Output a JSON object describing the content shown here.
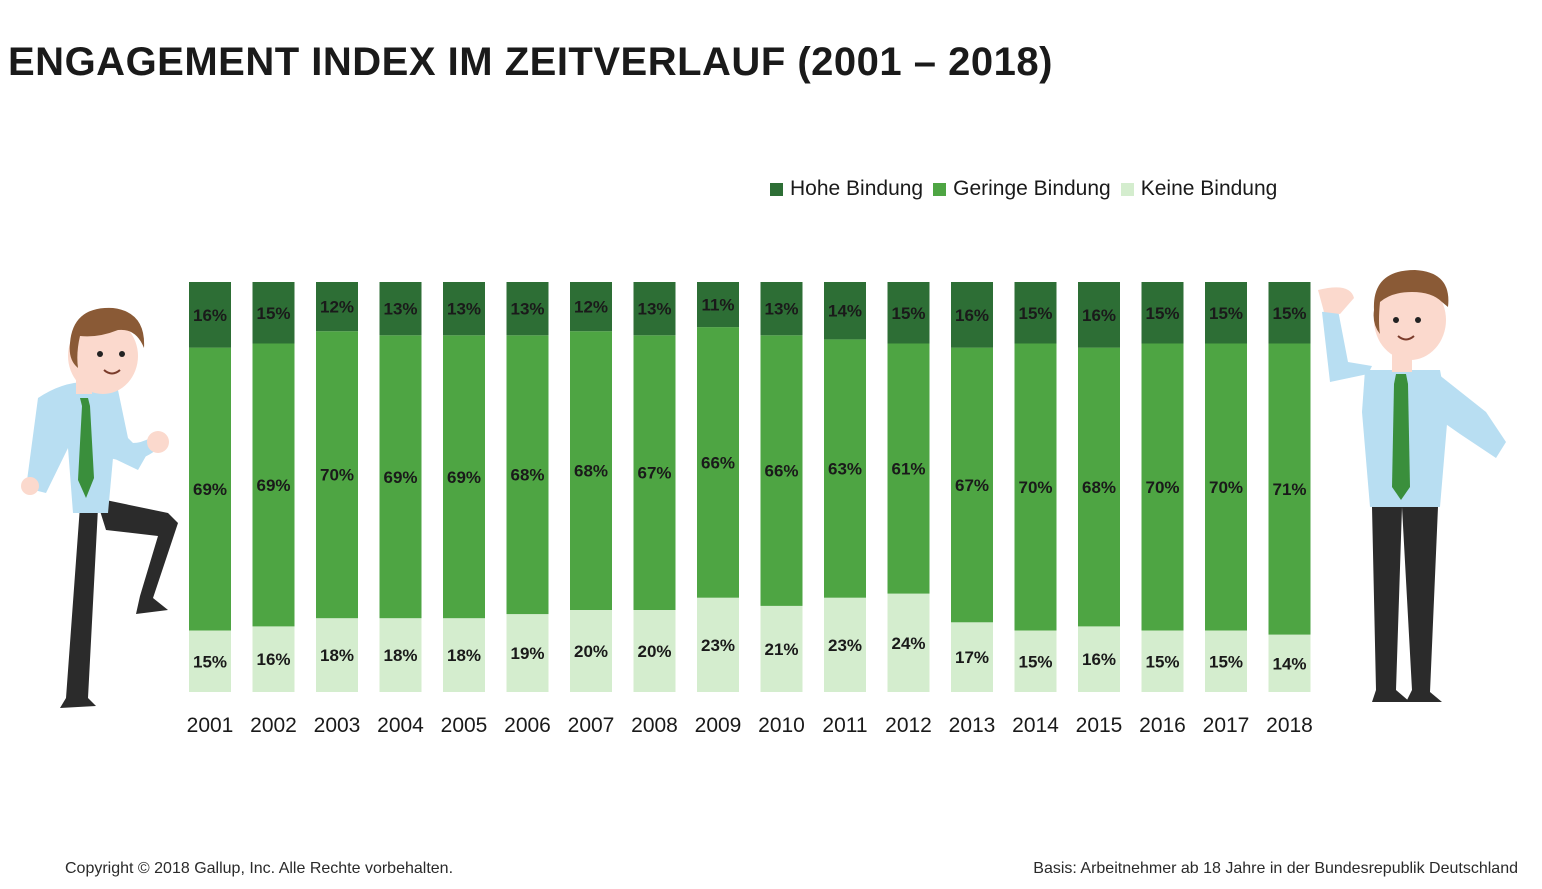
{
  "title": "ENGAGEMENT INDEX IM ZEITVERLAUF (2001 – 2018)",
  "footer": {
    "copyright": "Copyright © 2018 Gallup, Inc. Alle Rechte vorbehalten.",
    "basis": "Basis: Arbeitnehmer ab 18 Jahre in der Bundesrepublik Deutschland"
  },
  "colors": {
    "hohe": "#2d6e35",
    "geringe": "#4ea543",
    "keine": "#d4edce",
    "skin": "#fbd9cd",
    "hair": "#8a5a36",
    "shirt": "#b8def2",
    "tie": "#3a8f3c",
    "pants": "#2b2b2b"
  },
  "chart_data": {
    "type": "bar",
    "stacked": true,
    "normalized": true,
    "title": "ENGAGEMENT INDEX IM ZEITVERLAUF (2001 – 2018)",
    "categories": [
      "2001",
      "2002",
      "2003",
      "2004",
      "2005",
      "2006",
      "2007",
      "2008",
      "2009",
      "2010",
      "2011",
      "2012",
      "2013",
      "2014",
      "2015",
      "2016",
      "2017",
      "2018"
    ],
    "ylim": [
      0,
      100
    ],
    "legend_position": "top-right",
    "grid": false,
    "series": [
      {
        "name": "Hohe Bindung",
        "color": "#2d6e35",
        "labels": [
          "16%",
          "15%",
          "12%",
          "13%",
          "13%",
          "13%",
          "12%",
          "13%",
          "11%",
          "13%",
          "14%",
          "15%",
          "16%",
          "15%",
          "16%",
          "15%",
          "15%",
          "15%"
        ],
        "values": [
          16,
          15,
          12,
          13,
          13,
          13,
          12,
          13,
          11,
          13,
          14,
          15,
          16,
          15,
          16,
          15,
          15,
          15
        ]
      },
      {
        "name": "Geringe Bindung",
        "color": "#4ea543",
        "labels": [
          "69%",
          "69%",
          "70%",
          "69%",
          "69%",
          "68%",
          "68%",
          "67%",
          "66%",
          "66%",
          "63%",
          "61%",
          "67%",
          "70%",
          "68%",
          "70%",
          "70%",
          "71%"
        ],
        "values": [
          69,
          69,
          70,
          69,
          69,
          68,
          68,
          67,
          66,
          66,
          63,
          61,
          67,
          70,
          68,
          70,
          70,
          71
        ]
      },
      {
        "name": "Keine Bindung",
        "color": "#d4edce",
        "labels": [
          "15%",
          "16%",
          "18%",
          "18%",
          "18%",
          "19%",
          "20%",
          "20%",
          "23%",
          "21%",
          "23%",
          "24%",
          "17%",
          "15%",
          "16%",
          "15%",
          "15%",
          "14%"
        ],
        "values": [
          15,
          16,
          18,
          18,
          18,
          19,
          20,
          20,
          23,
          21,
          23,
          24,
          17,
          15,
          16,
          15,
          15,
          14
        ]
      }
    ]
  }
}
